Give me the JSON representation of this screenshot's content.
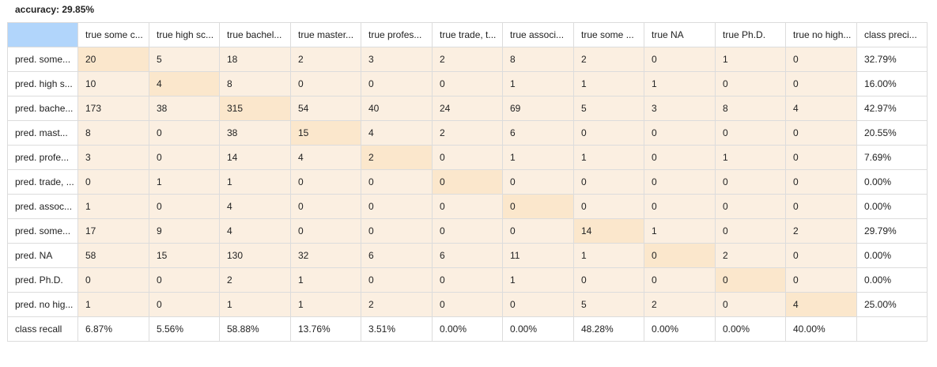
{
  "accuracy_label": "accuracy: 29.85%",
  "column_headers": [
    "true some c...",
    "true high sc...",
    "true bachel...",
    "true master...",
    "true profes...",
    "true trade, t...",
    "true associ...",
    "true some ...",
    "true NA",
    "true Ph.D.",
    "true no high...",
    "class preci..."
  ],
  "rows": [
    {
      "label": "pred. some...",
      "values": [
        "20",
        "5",
        "18",
        "2",
        "3",
        "2",
        "8",
        "2",
        "0",
        "1",
        "0"
      ],
      "precision": "32.79%"
    },
    {
      "label": "pred. high s...",
      "values": [
        "10",
        "4",
        "8",
        "0",
        "0",
        "0",
        "1",
        "1",
        "1",
        "0",
        "0"
      ],
      "precision": "16.00%"
    },
    {
      "label": "pred. bache...",
      "values": [
        "173",
        "38",
        "315",
        "54",
        "40",
        "24",
        "69",
        "5",
        "3",
        "8",
        "4"
      ],
      "precision": "42.97%"
    },
    {
      "label": "pred. mast...",
      "values": [
        "8",
        "0",
        "38",
        "15",
        "4",
        "2",
        "6",
        "0",
        "0",
        "0",
        "0"
      ],
      "precision": "20.55%"
    },
    {
      "label": "pred. profe...",
      "values": [
        "3",
        "0",
        "14",
        "4",
        "2",
        "0",
        "1",
        "1",
        "0",
        "1",
        "0"
      ],
      "precision": "7.69%"
    },
    {
      "label": "pred. trade, ...",
      "values": [
        "0",
        "1",
        "1",
        "0",
        "0",
        "0",
        "0",
        "0",
        "0",
        "0",
        "0"
      ],
      "precision": "0.00%"
    },
    {
      "label": "pred. assoc...",
      "values": [
        "1",
        "0",
        "4",
        "0",
        "0",
        "0",
        "0",
        "0",
        "0",
        "0",
        "0"
      ],
      "precision": "0.00%"
    },
    {
      "label": "pred. some...",
      "values": [
        "17",
        "9",
        "4",
        "0",
        "0",
        "0",
        "0",
        "14",
        "1",
        "0",
        "2"
      ],
      "precision": "29.79%"
    },
    {
      "label": "pred. NA",
      "values": [
        "58",
        "15",
        "130",
        "32",
        "6",
        "6",
        "11",
        "1",
        "0",
        "2",
        "0"
      ],
      "precision": "0.00%"
    },
    {
      "label": "pred. Ph.D.",
      "values": [
        "0",
        "0",
        "2",
        "1",
        "0",
        "0",
        "1",
        "0",
        "0",
        "0",
        "0"
      ],
      "precision": "0.00%"
    },
    {
      "label": "pred. no hig...",
      "values": [
        "1",
        "0",
        "1",
        "1",
        "2",
        "0",
        "0",
        "5",
        "2",
        "0",
        "4"
      ],
      "precision": "25.00%"
    }
  ],
  "recall_row": {
    "label": "class recall",
    "values": [
      "6.87%",
      "5.56%",
      "58.88%",
      "13.76%",
      "3.51%",
      "0.00%",
      "0.00%",
      "48.28%",
      "0.00%",
      "0.00%",
      "40.00%"
    ]
  },
  "colors": {
    "corner": "#b1d5fb",
    "cell": "#fbefe1",
    "diagonal": "#fbe7cc",
    "border": "#dcdcdc"
  }
}
